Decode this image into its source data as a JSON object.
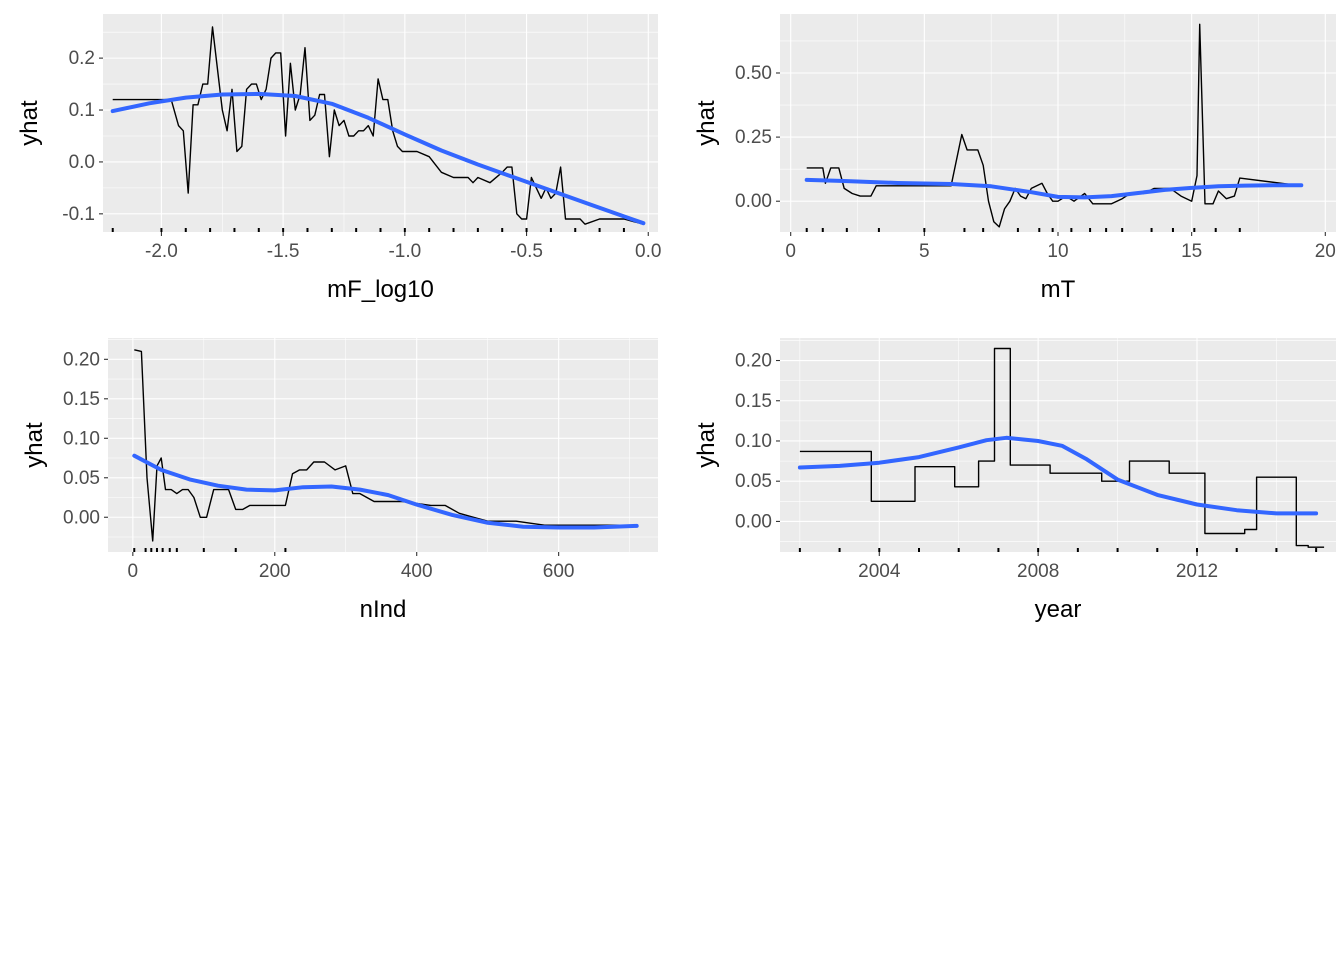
{
  "colors": {
    "panel_bg": "#EBEBEB",
    "grid": "#FFFFFF",
    "pd_line": "#000000",
    "smooth_line": "#3366FF"
  },
  "chart_data": [
    {
      "type": "line",
      "xlabel": "mF_log10",
      "ylabel": "yhat",
      "xlim": [
        -2.24,
        0.04
      ],
      "ylim": [
        -0.135,
        0.285
      ],
      "xticks": [
        -2.0,
        -1.5,
        -1.0,
        -0.5,
        0.0
      ],
      "xtick_labels": [
        "-2.0",
        "-1.5",
        "-1.0",
        "-0.5",
        "0.0"
      ],
      "yticks": [
        -0.1,
        0.0,
        0.1,
        0.2
      ],
      "ytick_labels": [
        "-0.1",
        "0.0",
        "0.1",
        "0.2"
      ],
      "rug": [
        -2.2,
        -2.0,
        -1.9,
        -1.8,
        -1.7,
        -1.6,
        -1.5,
        -1.4,
        -1.3,
        -1.2,
        -1.1,
        -1.0,
        -0.9,
        -0.8,
        -0.7,
        -0.6,
        -0.5,
        -0.4,
        -0.3,
        -0.2,
        -0.1
      ],
      "series": [
        {
          "role": "partial_dependence",
          "x": [
            -2.2,
            -1.96,
            -1.93,
            -1.91,
            -1.89,
            -1.87,
            -1.85,
            -1.83,
            -1.81,
            -1.79,
            -1.77,
            -1.75,
            -1.73,
            -1.71,
            -1.69,
            -1.67,
            -1.65,
            -1.63,
            -1.61,
            -1.59,
            -1.57,
            -1.55,
            -1.53,
            -1.51,
            -1.49,
            -1.47,
            -1.45,
            -1.43,
            -1.41,
            -1.39,
            -1.37,
            -1.35,
            -1.33,
            -1.31,
            -1.29,
            -1.27,
            -1.25,
            -1.23,
            -1.21,
            -1.19,
            -1.17,
            -1.15,
            -1.13,
            -1.11,
            -1.09,
            -1.07,
            -1.05,
            -1.03,
            -1.01,
            -0.99,
            -0.97,
            -0.95,
            -0.9,
            -0.85,
            -0.8,
            -0.78,
            -0.76,
            -0.74,
            -0.72,
            -0.7,
            -0.65,
            -0.6,
            -0.58,
            -0.56,
            -0.54,
            -0.52,
            -0.5,
            -0.48,
            -0.46,
            -0.44,
            -0.42,
            -0.4,
            -0.38,
            -0.36,
            -0.34,
            -0.32,
            -0.3,
            -0.28,
            -0.26,
            -0.2,
            -0.1,
            -0.02
          ],
          "y": [
            0.12,
            0.12,
            0.07,
            0.06,
            -0.06,
            0.11,
            0.11,
            0.15,
            0.15,
            0.26,
            0.18,
            0.1,
            0.06,
            0.14,
            0.02,
            0.03,
            0.14,
            0.15,
            0.15,
            0.12,
            0.14,
            0.2,
            0.21,
            0.21,
            0.05,
            0.19,
            0.1,
            0.13,
            0.22,
            0.08,
            0.09,
            0.13,
            0.13,
            0.01,
            0.1,
            0.07,
            0.08,
            0.05,
            0.05,
            0.06,
            0.06,
            0.07,
            0.05,
            0.16,
            0.12,
            0.12,
            0.06,
            0.03,
            0.02,
            0.02,
            0.02,
            0.02,
            0.01,
            -0.02,
            -0.03,
            -0.03,
            -0.03,
            -0.03,
            -0.04,
            -0.03,
            -0.04,
            -0.02,
            -0.01,
            -0.01,
            -0.1,
            -0.11,
            -0.11,
            -0.03,
            -0.05,
            -0.07,
            -0.05,
            -0.07,
            -0.06,
            -0.01,
            -0.11,
            -0.11,
            -0.11,
            -0.11,
            -0.12,
            -0.11,
            -0.11,
            -0.12
          ]
        },
        {
          "role": "smooth",
          "x": [
            -2.2,
            -2.05,
            -1.9,
            -1.75,
            -1.6,
            -1.45,
            -1.3,
            -1.15,
            -1.0,
            -0.85,
            -0.7,
            -0.55,
            -0.4,
            -0.25,
            -0.1,
            -0.02
          ],
          "y": [
            0.098,
            0.113,
            0.124,
            0.13,
            0.131,
            0.127,
            0.112,
            0.085,
            0.053,
            0.022,
            -0.005,
            -0.03,
            -0.055,
            -0.08,
            -0.105,
            -0.118
          ]
        }
      ]
    },
    {
      "type": "line",
      "xlabel": "mT",
      "ylabel": "yhat",
      "xlim": [
        -0.4,
        20.4
      ],
      "ylim": [
        -0.12,
        0.73
      ],
      "xticks": [
        0,
        5,
        10,
        15,
        20
      ],
      "xtick_labels": [
        "0",
        "5",
        "10",
        "15",
        "20"
      ],
      "yticks": [
        0.0,
        0.25,
        0.5
      ],
      "ytick_labels": [
        "0.00",
        "0.25",
        "0.50"
      ],
      "rug": [
        0.6,
        1.2,
        2.1,
        3.3,
        5.0,
        6.5,
        7.2,
        8.5,
        9.3,
        9.8,
        10.5,
        11.2,
        11.8,
        12.4,
        13.5,
        14.3,
        15.1,
        15.9,
        16.8
      ],
      "series": [
        {
          "role": "partial_dependence",
          "x": [
            0.6,
            1.2,
            1.3,
            1.5,
            1.8,
            2.0,
            2.3,
            2.6,
            3.0,
            3.2,
            4.0,
            6.0,
            6.4,
            6.6,
            6.8,
            7.0,
            7.2,
            7.4,
            7.6,
            7.8,
            8.0,
            8.2,
            8.4,
            8.6,
            8.8,
            9.0,
            9.4,
            9.6,
            9.8,
            10.0,
            10.3,
            10.6,
            11.0,
            11.3,
            11.6,
            12.0,
            12.4,
            12.7,
            13.2,
            13.6,
            14.2,
            14.6,
            15.0,
            15.2,
            15.3,
            15.5,
            15.8,
            16.0,
            16.3,
            16.6,
            16.8,
            19.1
          ],
          "y": [
            0.13,
            0.13,
            0.07,
            0.13,
            0.13,
            0.05,
            0.03,
            0.02,
            0.02,
            0.06,
            0.06,
            0.06,
            0.26,
            0.2,
            0.2,
            0.2,
            0.14,
            0.0,
            -0.08,
            -0.1,
            -0.03,
            0.0,
            0.05,
            0.02,
            0.01,
            0.05,
            0.07,
            0.03,
            0.0,
            0.0,
            0.02,
            0.0,
            0.03,
            -0.01,
            -0.01,
            -0.01,
            0.01,
            0.03,
            0.03,
            0.05,
            0.05,
            0.02,
            0.0,
            0.1,
            0.69,
            -0.01,
            -0.01,
            0.04,
            0.01,
            0.02,
            0.09,
            0.06
          ]
        },
        {
          "role": "smooth",
          "x": [
            0.6,
            2.0,
            4.0,
            6.0,
            7.5,
            9.0,
            10.0,
            11.0,
            12.0,
            13.0,
            14.0,
            15.0,
            16.0,
            17.0,
            18.0,
            19.1
          ],
          "y": [
            0.083,
            0.079,
            0.071,
            0.067,
            0.058,
            0.035,
            0.017,
            0.015,
            0.02,
            0.032,
            0.044,
            0.052,
            0.058,
            0.061,
            0.062,
            0.062
          ]
        }
      ]
    },
    {
      "type": "line",
      "xlabel": "nInd",
      "ylabel": "yhat",
      "xlim": [
        -35,
        740
      ],
      "ylim": [
        -0.044,
        0.227
      ],
      "xticks": [
        0,
        200,
        400,
        600
      ],
      "xtick_labels": [
        "0",
        "200",
        "400",
        "600"
      ],
      "yticks": [
        0.0,
        0.05,
        0.1,
        0.15,
        0.2
      ],
      "ytick_labels": [
        "0.00",
        "0.05",
        "0.10",
        "0.15",
        "0.20"
      ],
      "rug": [
        2,
        18,
        26,
        34,
        42,
        52,
        62,
        100,
        145,
        215
      ],
      "series": [
        {
          "role": "partial_dependence",
          "x": [
            2,
            12,
            20,
            28,
            34,
            40,
            46,
            54,
            62,
            70,
            78,
            86,
            95,
            104,
            114,
            124,
            135,
            145,
            155,
            165,
            175,
            185,
            195,
            205,
            215,
            225,
            235,
            245,
            255,
            270,
            285,
            300,
            310,
            320,
            340,
            380,
            420,
            440,
            460,
            480,
            500,
            540,
            580,
            620,
            660,
            710
          ],
          "y": [
            0.212,
            0.21,
            0.05,
            -0.03,
            0.065,
            0.075,
            0.035,
            0.035,
            0.03,
            0.035,
            0.035,
            0.025,
            0.0,
            0.0,
            0.035,
            0.035,
            0.035,
            0.01,
            0.01,
            0.015,
            0.015,
            0.015,
            0.015,
            0.015,
            0.015,
            0.055,
            0.06,
            0.06,
            0.07,
            0.07,
            0.06,
            0.065,
            0.03,
            0.03,
            0.02,
            0.02,
            0.015,
            0.015,
            0.005,
            0.0,
            -0.005,
            -0.005,
            -0.01,
            -0.01,
            -0.01,
            -0.01
          ]
        },
        {
          "role": "smooth",
          "x": [
            2,
            40,
            80,
            120,
            160,
            200,
            240,
            280,
            320,
            360,
            400,
            450,
            500,
            550,
            600,
            650,
            710
          ],
          "y": [
            0.078,
            0.06,
            0.048,
            0.04,
            0.035,
            0.034,
            0.038,
            0.039,
            0.035,
            0.028,
            0.016,
            0.003,
            -0.007,
            -0.012,
            -0.013,
            -0.013,
            -0.011
          ]
        }
      ]
    },
    {
      "type": "line",
      "xlabel": "year",
      "ylabel": "yhat",
      "xlim": [
        2001.5,
        2015.5
      ],
      "ylim": [
        -0.038,
        0.228
      ],
      "xticks": [
        2004,
        2008,
        2012
      ],
      "xtick_labels": [
        "2004",
        "2008",
        "2012"
      ],
      "rug": [
        2002,
        2003,
        2004,
        2005,
        2006,
        2007,
        2008,
        2009,
        2010,
        2011,
        2012,
        2013,
        2014,
        2015
      ],
      "yticks": [
        0.0,
        0.05,
        0.1,
        0.15,
        0.2
      ],
      "ytick_labels": [
        "0.00",
        "0.05",
        "0.10",
        "0.15",
        "0.20"
      ],
      "series": [
        {
          "role": "partial_dependence",
          "x": [
            2002,
            2003.8,
            2003.8,
            2004.9,
            2004.9,
            2005.9,
            2005.9,
            2006.5,
            2006.5,
            2006.9,
            2006.9,
            2007.3,
            2007.3,
            2008.3,
            2008.3,
            2009.6,
            2009.6,
            2010.3,
            2010.3,
            2011.3,
            2011.3,
            2012.2,
            2012.2,
            2013.2,
            2013.2,
            2013.5,
            2013.5,
            2014.5,
            2014.5,
            2014.8,
            2014.8,
            2015.2
          ],
          "y": [
            0.087,
            0.087,
            0.025,
            0.025,
            0.068,
            0.068,
            0.043,
            0.043,
            0.075,
            0.075,
            0.215,
            0.215,
            0.07,
            0.07,
            0.06,
            0.06,
            0.05,
            0.05,
            0.075,
            0.075,
            0.06,
            0.06,
            -0.015,
            -0.015,
            -0.01,
            -0.01,
            0.055,
            0.055,
            -0.03,
            -0.03,
            -0.032,
            -0.032
          ]
        },
        {
          "role": "smooth",
          "x": [
            2002,
            2003,
            2004,
            2005,
            2006,
            2006.7,
            2007.2,
            2008,
            2008.6,
            2009.2,
            2010,
            2011,
            2012,
            2013,
            2014,
            2015
          ],
          "y": [
            0.067,
            0.069,
            0.073,
            0.08,
            0.092,
            0.101,
            0.104,
            0.1,
            0.094,
            0.078,
            0.052,
            0.033,
            0.021,
            0.014,
            0.01,
            0.01
          ]
        }
      ]
    }
  ]
}
